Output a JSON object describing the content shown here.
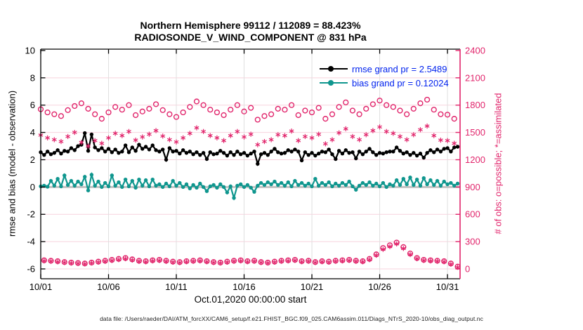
{
  "header": {
    "title_line1": "Northern Hemisphere 99112 / 112089 = 88.423%",
    "title_line2": "RADIOSONDE_V_WIND_COMPONENT @ 831 hPa"
  },
  "legend": {
    "text_color": "#0022ee",
    "items": [
      {
        "label": "rmse grand pr = 2.5489",
        "color": "#000000"
      },
      {
        "label": "bias grand pr = 0.12024",
        "color": "#0f968e"
      }
    ]
  },
  "footer": {
    "datafile": "data file: /Users/raeder/DAI/ATM_forcXX/CAM6_setup/f.e21.FHIST_BGC.f09_025.CAM6assim.011/Diags_NTrS_2020-10/obs_diag_output.nc"
  },
  "chart_data": {
    "type": "line",
    "title": "Northern Hemisphere 99112 / 112089 = 88.423%",
    "subtitle": "RADIOSONDE_V_WIND_COMPONENT @ 831 hPa",
    "colors": {
      "pink": "#e1246b",
      "pink_grid": "#f7d3de",
      "gray_grid": "#e0e0e0",
      "zero_line": "#c2c2c2",
      "teal": "#0f968e",
      "black": "#000000",
      "legend_text": "#0022ee"
    },
    "x_axis": {
      "label": "Oct.01,2020 00:00:00 start",
      "tick_positions_days": [
        0,
        5,
        10,
        15,
        20,
        25,
        30
      ],
      "tick_labels": [
        "10/01",
        "10/06",
        "10/11",
        "10/16",
        "10/21",
        "10/26",
        "10/31"
      ],
      "range_days": [
        0,
        30.93
      ]
    },
    "y_left": {
      "label": "rmse and bias (model - observation)",
      "ticks": [
        10,
        8,
        6,
        4,
        2,
        0,
        -2,
        -4,
        -6
      ],
      "grid_values": [
        8,
        6,
        4,
        2,
        0,
        -2,
        -4,
        -6
      ],
      "range": [
        -6.72,
        10.1
      ]
    },
    "y_right": {
      "label": "# of obs: o=possible; *=assimilated",
      "ticks": [
        2400,
        2100,
        1800,
        1500,
        1200,
        900,
        600,
        300,
        0
      ],
      "range": [
        0,
        2400
      ],
      "maps_to_left": [
        -6,
        10
      ]
    },
    "zero_line": {
      "value": 0,
      "width": 3
    },
    "bin_interval_days": 0.25,
    "bin_start_day": 0,
    "series": [
      {
        "name": "rmse",
        "axis": "left",
        "marker": "filled-circle",
        "line": true,
        "color": "#000000",
        "values": [
          2.55,
          2.35,
          2.6,
          2.4,
          2.5,
          2.7,
          2.45,
          2.65,
          2.6,
          2.85,
          2.7,
          3.0,
          3.1,
          3.95,
          2.65,
          3.85,
          2.9,
          2.7,
          2.85,
          2.6,
          2.8,
          2.55,
          2.75,
          2.5,
          2.6,
          3.05,
          2.55,
          2.9,
          2.65,
          3.1,
          2.8,
          2.95,
          2.75,
          3.05,
          2.7,
          2.6,
          2.75,
          2.0,
          2.85,
          2.6,
          2.65,
          2.45,
          2.7,
          2.5,
          2.6,
          2.4,
          2.55,
          2.35,
          2.5,
          2.05,
          2.55,
          2.4,
          2.45,
          2.65,
          2.5,
          2.3,
          2.55,
          2.35,
          2.6,
          2.4,
          2.5,
          2.3,
          2.45,
          2.6,
          1.7,
          2.4,
          2.5,
          2.35,
          2.6,
          2.8,
          2.55,
          2.45,
          2.5,
          2.7,
          2.6,
          2.75,
          2.6,
          1.95,
          2.55,
          2.35,
          2.5,
          2.3,
          2.45,
          2.6,
          2.55,
          2.75,
          2.4,
          2.05,
          2.65,
          2.45,
          2.7,
          2.5,
          2.55,
          2.1,
          2.6,
          2.4,
          2.6,
          2.8,
          2.55,
          2.35,
          2.5,
          2.45,
          2.55,
          2.6,
          2.6,
          2.9,
          2.65,
          2.45,
          2.55,
          2.35,
          2.5,
          2.3,
          2.45,
          2.15,
          2.5,
          2.7,
          2.55,
          2.75,
          2.6,
          2.8,
          2.85,
          2.6,
          2.9,
          2.95
        ]
      },
      {
        "name": "bias",
        "axis": "left",
        "marker": "filled-circle",
        "line": true,
        "color": "#0f968e",
        "values": [
          0.05,
          0.1,
          0.02,
          0.45,
          0.1,
          0.6,
          0.05,
          0.85,
          0.15,
          0.45,
          0.1,
          0.4,
          0.2,
          0.75,
          -0.25,
          0.9,
          0.1,
          0.4,
          0.0,
          0.3,
          0.05,
          0.85,
          0.1,
          0.35,
          0.0,
          0.55,
          0.05,
          0.45,
          -0.05,
          0.55,
          0.1,
          0.5,
          0.05,
          0.55,
          0.1,
          0.2,
          0.0,
          0.25,
          0.05,
          0.45,
          0.1,
          0.3,
          0.0,
          0.2,
          -0.1,
          0.15,
          -0.05,
          0.25,
          0.0,
          -0.3,
          0.05,
          0.15,
          -0.05,
          0.2,
          0.0,
          -0.4,
          0.05,
          -0.8,
          0.1,
          0.2,
          0.0,
          0.15,
          -0.05,
          -0.35,
          0.1,
          0.3,
          0.15,
          0.35,
          0.2,
          0.4,
          0.15,
          0.3,
          0.1,
          0.35,
          0.05,
          0.45,
          0.15,
          0.3,
          0.1,
          0.25,
          0.05,
          0.6,
          0.1,
          0.3,
          0.15,
          0.35,
          0.05,
          0.25,
          0.1,
          0.3,
          0.15,
          0.4,
          0.05,
          -0.2,
          0.1,
          0.3,
          0.15,
          0.35,
          0.1,
          0.25,
          0.05,
          0.3,
          0.0,
          0.2,
          0.1,
          0.5,
          0.15,
          0.6,
          0.2,
          0.7,
          0.15,
          0.55,
          0.1,
          0.65,
          0.2,
          0.5,
          0.15,
          0.45,
          0.1,
          0.4,
          0.2,
          0.3,
          0.1,
          0.25
        ]
      },
      {
        "name": "possible",
        "axis": "right",
        "marker": "open-circle",
        "line": false,
        "color": "#e1246b",
        "values": [
          1755,
          95,
          1720,
          90,
          1700,
          85,
          1680,
          75,
          1745,
          70,
          1790,
          65,
          1820,
          60,
          1760,
          70,
          1700,
          80,
          1650,
          90,
          1720,
          100,
          1780,
          110,
          1750,
          120,
          1800,
          105,
          1690,
          90,
          1730,
          85,
          1760,
          95,
          1810,
          100,
          1745,
          90,
          1700,
          80,
          1670,
          75,
          1720,
          85,
          1780,
          90,
          1840,
          95,
          1800,
          85,
          1750,
          75,
          1720,
          70,
          1690,
          80,
          1750,
          90,
          1800,
          95,
          1730,
          85,
          1770,
          90,
          1640,
          75,
          1680,
          70,
          1700,
          80,
          1760,
          90,
          1750,
          95,
          1800,
          100,
          1690,
          85,
          1740,
          90,
          1720,
          75,
          1770,
          85,
          1650,
          80,
          1700,
          90,
          1780,
          95,
          1830,
          100,
          1740,
          90,
          1700,
          85,
          1760,
          110,
          1810,
          160,
          1850,
          230,
          1800,
          260,
          1780,
          290,
          1740,
          240,
          1700,
          170,
          1760,
          120,
          1820,
          100,
          1860,
          95,
          1750,
          90,
          1700,
          85,
          1695,
          60,
          1650,
          25
        ]
      },
      {
        "name": "assimilated",
        "axis": "right",
        "marker": "asterisk",
        "line": false,
        "color": "#e1246b",
        "values": [
          1470,
          88,
          1440,
          84,
          1420,
          78,
          1400,
          70,
          1455,
          64,
          1500,
          60,
          1390,
          55,
          1350,
          65,
          1410,
          74,
          1380,
          83,
          1440,
          92,
          1490,
          102,
          1465,
          112,
          1510,
          97,
          1415,
          83,
          1450,
          78,
          1480,
          88,
          1520,
          92,
          1460,
          83,
          1420,
          74,
          1395,
          69,
          1440,
          79,
          1490,
          84,
          1550,
          88,
          1510,
          79,
          1465,
          70,
          1440,
          65,
          1410,
          74,
          1465,
          84,
          1510,
          88,
          1450,
          79,
          1480,
          84,
          1365,
          70,
          1400,
          65,
          1420,
          74,
          1475,
          84,
          1465,
          88,
          1515,
          93,
          1410,
          79,
          1455,
          84,
          1440,
          70,
          1480,
          79,
          1375,
          74,
          1420,
          84,
          1495,
          88,
          1540,
          93,
          1455,
          84,
          1420,
          79,
          1475,
          102,
          1520,
          150,
          1560,
          215,
          1510,
          245,
          1490,
          275,
          1455,
          225,
          1420,
          158,
          1475,
          112,
          1530,
          93,
          1570,
          88,
          1465,
          84,
          1415,
          79,
          1410,
          52,
          1380,
          18
        ]
      }
    ]
  }
}
